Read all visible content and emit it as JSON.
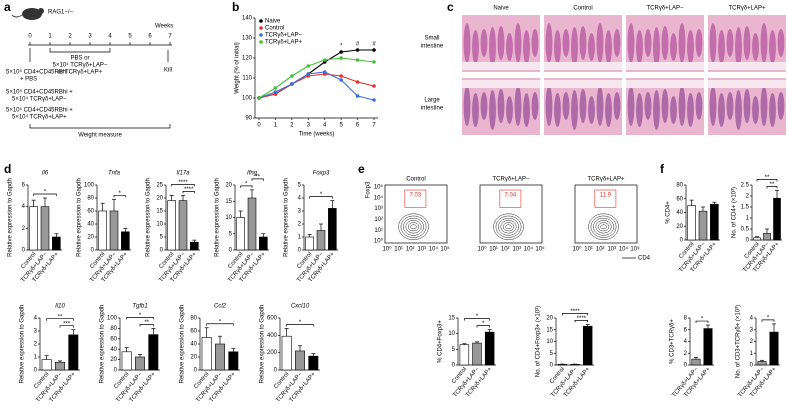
{
  "panel_labels": [
    "a",
    "b",
    "c",
    "d",
    "e",
    "f"
  ],
  "timeline": {
    "mouse": "RAG1−/−",
    "unit": "Weeks",
    "weeks": [
      0,
      1,
      2,
      3,
      4,
      5,
      6,
      7
    ],
    "kill": "Kill",
    "treatment": [
      "PBS or",
      "5×10⁴ TCRγδ+LAP−",
      "or TCRγδ+LAP+"
    ],
    "groups": [
      [
        "5×10⁵ CD4+CD45RBhi",
        "+ PBS"
      ],
      [
        "5×10⁵ CD4+CD45RBhi +",
        "5×10⁴ TCRγδ+LAP−"
      ],
      [
        "5×10⁵ CD4+CD45RBhi +",
        "5×10⁴ TCRγδ+LAP+"
      ]
    ],
    "measure": "Weight measure"
  },
  "histology": {
    "columns": [
      "Naive",
      "Control",
      "TCRγδ+LAP−",
      "TCRγδ+LAP+"
    ],
    "rows": [
      [
        "Small",
        "intestine"
      ],
      [
        "Large",
        "intestine"
      ]
    ]
  },
  "flow": {
    "y_label": "Foxp3",
    "x_label": "CD4",
    "axis_ticks": [
      "10⁰",
      "10¹",
      "10²",
      "10³",
      "10⁴",
      "10⁵"
    ],
    "plots": [
      {
        "title": "Control",
        "gate": 7.03
      },
      {
        "title": "TCRγδ+LAP−",
        "gate": 7.04
      },
      {
        "title": "TCRγδ+LAP+",
        "gate": 11.9
      }
    ]
  },
  "chart_data": [
    {
      "type": "line",
      "x_label": "Time (weeks)",
      "y_label": "Weight (% of initial)",
      "x": [
        0,
        1,
        2,
        3,
        4,
        5,
        6,
        7
      ],
      "xlim": [
        0,
        7
      ],
      "xticks": [
        0,
        1,
        2,
        3,
        4,
        5,
        6,
        7
      ],
      "ylim": [
        90,
        140
      ],
      "yticks": [
        90,
        100,
        110,
        120,
        130,
        140
      ],
      "legend": "upper left",
      "series": [
        {
          "name": "Naive",
          "color": "#000000",
          "values": [
            100,
            102,
            107,
            112,
            118,
            123,
            124,
            124
          ]
        },
        {
          "name": "Control",
          "color": "#e8302a",
          "values": [
            100,
            102,
            107,
            111,
            112,
            111,
            108,
            106
          ]
        },
        {
          "name": "TCRγδ+LAP−",
          "color": "#3b6fd8",
          "values": [
            100,
            103,
            107,
            112,
            113,
            109,
            101,
            99
          ]
        },
        {
          "name": "TCRγδ+LAP+",
          "color": "#44c23a",
          "values": [
            100,
            105,
            111,
            116,
            119,
            120,
            119,
            118
          ]
        }
      ],
      "annotations": [
        {
          "x": 5,
          "text": "*"
        },
        {
          "x": 6,
          "text": "#"
        },
        {
          "x": 7,
          "text": "#"
        }
      ]
    },
    {
      "type": "bar",
      "title": "Il6",
      "y_label": "Relative expression to Gapdh",
      "categories": [
        "Control",
        "TCRγδ+LAP−",
        "TCRγδ+LAP+"
      ],
      "values": [
        4,
        4,
        1.2
      ],
      "errors": [
        0.6,
        0.8,
        0.3
      ],
      "colors": [
        "#ffffff",
        "#999999",
        "#000000"
      ],
      "ylim": [
        0,
        6
      ],
      "yticks": [
        0,
        2,
        4,
        6
      ],
      "annotations": [
        {
          "text": "*",
          "between": [
            0,
            2
          ]
        }
      ]
    },
    {
      "type": "bar",
      "title": "Tnfa",
      "y_label": "Relative expression to Gapdh",
      "categories": [
        "Control",
        "TCRγδ+LAP−",
        "TCRγδ+LAP+"
      ],
      "values": [
        60,
        60,
        28
      ],
      "errors": [
        12,
        18,
        5
      ],
      "colors": [
        "#ffffff",
        "#999999",
        "#000000"
      ],
      "ylim": [
        0,
        100
      ],
      "yticks": [
        0,
        20,
        40,
        60,
        80,
        100
      ],
      "annotations": [
        {
          "text": "*",
          "between": [
            1,
            2
          ]
        }
      ]
    },
    {
      "type": "bar",
      "title": "Il17a",
      "y_label": "Relative expression to Gapdh",
      "categories": [
        "Control",
        "TCRγδ+LAP−",
        "TCRγδ+LAP+"
      ],
      "values": [
        19,
        19,
        3
      ],
      "errors": [
        2,
        2,
        0.8
      ],
      "colors": [
        "#ffffff",
        "#999999",
        "#000000"
      ],
      "ylim": [
        0,
        25
      ],
      "yticks": [
        0,
        5,
        10,
        15,
        20,
        25
      ],
      "annotations": [
        {
          "text": "****",
          "between": [
            1,
            2
          ]
        },
        {
          "text": "****",
          "between": [
            0,
            2
          ]
        }
      ]
    },
    {
      "type": "bar",
      "title": "Ifng",
      "y_label": "Relative expression to Gapdh",
      "categories": [
        "Control",
        "TCRγδ+LAP−",
        "TCRγδ+LAP+"
      ],
      "values": [
        10,
        16,
        4
      ],
      "errors": [
        2,
        2.5,
        1
      ],
      "colors": [
        "#ffffff",
        "#999999",
        "#000000"
      ],
      "ylim": [
        0,
        20
      ],
      "yticks": [
        0,
        5,
        10,
        15,
        20
      ],
      "annotations": [
        {
          "text": "*",
          "between": [
            0,
            1
          ]
        },
        {
          "text": "**",
          "between": [
            1,
            2
          ]
        }
      ]
    },
    {
      "type": "bar",
      "title": "Foxp3",
      "y_label": "Relative expression to Gapdh",
      "categories": [
        "Control",
        "TCRγδ+LAP−",
        "TCRγδ+LAP+"
      ],
      "values": [
        1,
        1.5,
        3.2
      ],
      "errors": [
        0.2,
        0.5,
        0.6
      ],
      "colors": [
        "#ffffff",
        "#999999",
        "#000000"
      ],
      "ylim": [
        0,
        5
      ],
      "yticks": [
        0,
        1,
        2,
        3,
        4,
        5
      ],
      "annotations": [
        {
          "text": "*",
          "between": [
            0,
            2
          ]
        }
      ]
    },
    {
      "type": "bar",
      "title": "Il10",
      "y_label": "Relative expression to Gapdh",
      "categories": [
        "Control",
        "TCRγδ+LAP−",
        "TCRγδ+LAP+"
      ],
      "values": [
        0.8,
        0.6,
        2.7
      ],
      "errors": [
        0.3,
        0.1,
        0.4
      ],
      "colors": [
        "#ffffff",
        "#999999",
        "#000000"
      ],
      "ylim": [
        0,
        4
      ],
      "yticks": [
        0,
        1,
        2,
        3,
        4
      ],
      "annotations": [
        {
          "text": "***",
          "between": [
            1,
            2
          ]
        },
        {
          "text": "**",
          "between": [
            0,
            2
          ]
        }
      ]
    },
    {
      "type": "bar",
      "title": "Tgfb1",
      "y_label": "Relative expression to Gapdh",
      "categories": [
        "Control",
        "TCRγδ+LAP−",
        "TCRγδ+LAP+"
      ],
      "values": [
        35,
        25,
        68
      ],
      "errors": [
        8,
        5,
        12
      ],
      "colors": [
        "#ffffff",
        "#999999",
        "#000000"
      ],
      "ylim": [
        0,
        100
      ],
      "yticks": [
        0,
        20,
        40,
        60,
        80,
        100
      ],
      "annotations": [
        {
          "text": "**",
          "between": [
            1,
            2
          ]
        },
        {
          "text": "*",
          "between": [
            0,
            2
          ]
        }
      ]
    },
    {
      "type": "bar",
      "title": "Ccl2",
      "y_label": "Relative expression to Gapdh",
      "categories": [
        "Control",
        "TCRγδ+LAP−",
        "TCRγδ+LAP+"
      ],
      "values": [
        50,
        40,
        28
      ],
      "errors": [
        15,
        12,
        5
      ],
      "colors": [
        "#ffffff",
        "#999999",
        "#000000"
      ],
      "ylim": [
        0,
        80
      ],
      "yticks": [
        0,
        20,
        40,
        60,
        80
      ],
      "annotations": [
        {
          "text": "*",
          "between": [
            0,
            2
          ]
        }
      ]
    },
    {
      "type": "bar",
      "title": "Cxcl10",
      "y_label": "Relative expression to Gapdh",
      "categories": [
        "Control",
        "TCRγδ+LAP−",
        "TCRγδ+LAP+"
      ],
      "values": [
        390,
        220,
        160
      ],
      "errors": [
        90,
        60,
        30
      ],
      "colors": [
        "#ffffff",
        "#999999",
        "#000000"
      ],
      "ylim": [
        0,
        600
      ],
      "yticks": [
        0,
        200,
        400,
        600
      ],
      "annotations": [
        {
          "text": "*",
          "between": [
            0,
            2
          ]
        }
      ]
    },
    {
      "type": "bar",
      "y_label": "% CD4+Foxp3+",
      "categories": [
        "Control",
        "TCRγδ+LAP−",
        "TCRγδ+LAP+"
      ],
      "values": [
        6.5,
        7,
        10.5
      ],
      "errors": [
        0.3,
        0.4,
        0.8
      ],
      "colors": [
        "#ffffff",
        "#999999",
        "#000000"
      ],
      "ylim": [
        0,
        15
      ],
      "yticks": [
        0,
        5,
        10,
        15
      ],
      "annotations": [
        {
          "text": "*",
          "between": [
            1,
            2
          ]
        },
        {
          "text": "*",
          "between": [
            0,
            2
          ]
        }
      ]
    },
    {
      "type": "bar",
      "y_label": "No. of CD4+Foxp3+ (×10³)",
      "categories": [
        "Control",
        "TCRγδ+LAP−",
        "TCRγδ+LAP+"
      ],
      "values": [
        0.3,
        0.3,
        16.5
      ],
      "errors": [
        0.1,
        0.1,
        0.8
      ],
      "colors": [
        "#ffffff",
        "#999999",
        "#000000"
      ],
      "ylim": [
        0,
        20
      ],
      "yticks": [
        0,
        5,
        10,
        15,
        20
      ],
      "annotations": [
        {
          "text": "****",
          "between": [
            1,
            2
          ]
        },
        {
          "text": "****",
          "between": [
            0,
            2
          ]
        }
      ]
    },
    {
      "type": "bar",
      "y_label": "% CD4+",
      "categories": [
        "Control",
        "TCRγδ+LAP−",
        "TCRγδ+LAP+"
      ],
      "values": [
        50,
        42,
        52
      ],
      "errors": [
        8,
        6,
        3
      ],
      "colors": [
        "#ffffff",
        "#999999",
        "#000000"
      ],
      "ylim": [
        0,
        80
      ],
      "yticks": [
        0,
        20,
        40,
        60,
        80
      ]
    },
    {
      "type": "bar",
      "y_label": "No. of CD4+ (×10³)",
      "categories": [
        "Control",
        "TCRγδ+LAP−",
        "TCRγδ+LAP+"
      ],
      "values": [
        0.1,
        0.3,
        1.9
      ],
      "errors": [
        0.05,
        0.2,
        0.35
      ],
      "colors": [
        "#ffffff",
        "#999999",
        "#000000"
      ],
      "ylim": [
        0,
        2.5
      ],
      "yticks": [
        0,
        0.5,
        1,
        1.5,
        2,
        2.5
      ],
      "annotations": [
        {
          "text": "**",
          "between": [
            1,
            2
          ]
        },
        {
          "text": "**",
          "between": [
            0,
            2
          ]
        }
      ]
    },
    {
      "type": "bar",
      "y_label": "% CD3+TCRγδ+",
      "categories": [
        "TCRγδ+LAP−",
        "TCRγδ+LAP+"
      ],
      "values": [
        1,
        6.2
      ],
      "errors": [
        0.3,
        0.6
      ],
      "colors": [
        "#999999",
        "#000000"
      ],
      "ylim": [
        0,
        8
      ],
      "yticks": [
        0,
        2,
        4,
        6,
        8
      ],
      "annotations": [
        {
          "text": "*",
          "between": [
            0,
            1
          ]
        }
      ]
    },
    {
      "type": "bar",
      "y_label": "No. of CD3+TCRγδ+ (×10³)",
      "categories": [
        "TCRγδ+LAP−",
        "TCRγδ+LAP+"
      ],
      "values": [
        0.3,
        2.8
      ],
      "errors": [
        0.1,
        0.7
      ],
      "colors": [
        "#999999",
        "#000000"
      ],
      "ylim": [
        0,
        4
      ],
      "yticks": [
        0,
        1,
        2,
        3,
        4
      ],
      "annotations": [
        {
          "text": "*",
          "between": [
            0,
            1
          ]
        }
      ]
    }
  ]
}
